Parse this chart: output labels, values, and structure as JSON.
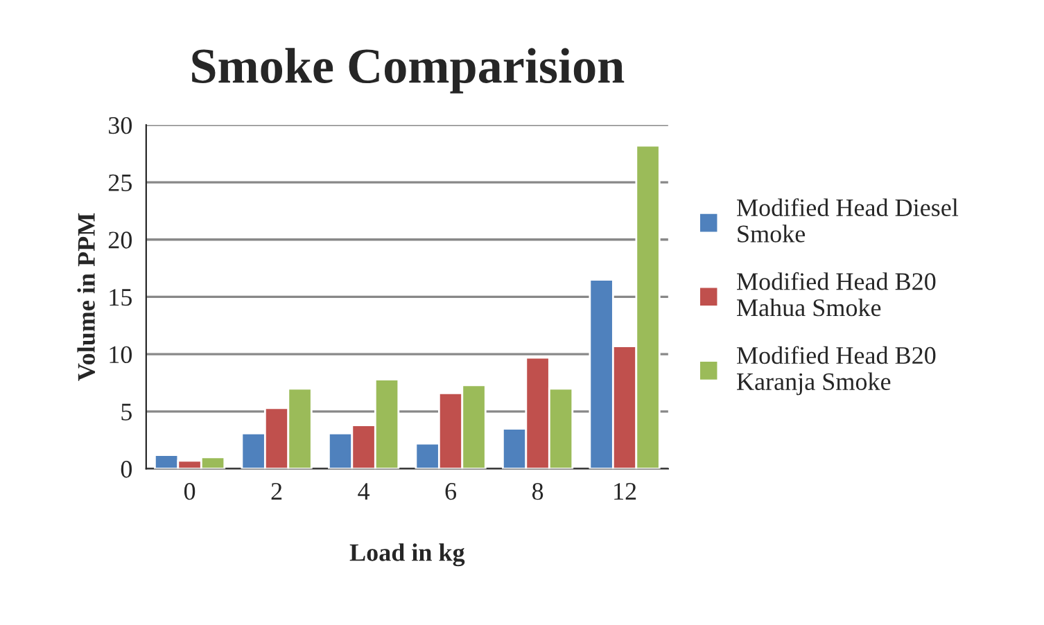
{
  "chart_data": {
    "type": "bar",
    "title": "Smoke Comparision",
    "xlabel": "Load in kg",
    "ylabel": "Volume in PPM",
    "categories": [
      "0",
      "2",
      "4",
      "6",
      "8",
      "12"
    ],
    "series": [
      {
        "name": "Modified Head Diesel\nSmoke",
        "color": "#4f81bd",
        "values": [
          1.2,
          3.1,
          3.1,
          2.2,
          3.5,
          16.5
        ]
      },
      {
        "name": "Modified Head B20\nMahua Smoke",
        "color": "#c0504d",
        "values": [
          0.7,
          5.3,
          3.8,
          6.6,
          9.7,
          10.7
        ]
      },
      {
        "name": "Modified Head B20\nKaranja Smoke",
        "color": "#9bbb59",
        "values": [
          1.0,
          7.0,
          7.8,
          7.3,
          7.0,
          28.2
        ]
      }
    ],
    "ylim": [
      0,
      30
    ],
    "yticks": [
      0,
      5,
      10,
      15,
      20,
      25,
      30
    ],
    "grid": "y",
    "legend": "right"
  }
}
